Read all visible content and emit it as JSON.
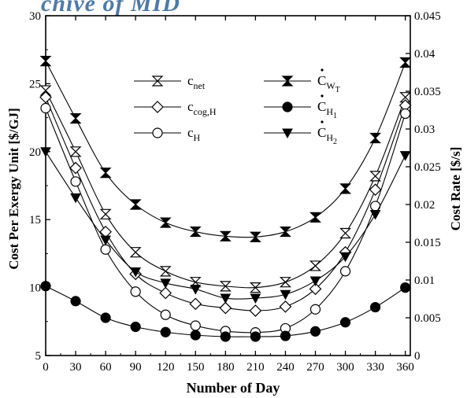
{
  "watermark": "chive of MID",
  "chart_data": {
    "type": "line",
    "xlabel": "Number of Day",
    "ylabel": "Cost Per Exergy Unit [$/GJ]",
    "ylabel_right": "Cost Rate [$/s]",
    "xlim": [
      0,
      365
    ],
    "ylim": [
      5,
      30
    ],
    "ylim_right": [
      0,
      0.045
    ],
    "xticks": [
      0,
      30,
      60,
      90,
      120,
      150,
      180,
      210,
      240,
      270,
      300,
      330,
      360
    ],
    "xtick_labels": [
      "0",
      "30",
      "60",
      "90",
      "120",
      "150",
      "180",
      "210",
      "240",
      "270",
      "300",
      "330",
      "360"
    ],
    "yticks": [
      5,
      10,
      15,
      20,
      25,
      30
    ],
    "ytick_labels": [
      "5",
      "10",
      "15",
      "20",
      "25",
      "30"
    ],
    "yticks_right": [
      0,
      0.005,
      0.01,
      0.015,
      0.02,
      0.025,
      0.03,
      0.035,
      0.04,
      0.045
    ],
    "ytick_labels_right": [
      "0",
      "0.005",
      "0.01",
      "0.015",
      "0.02",
      "0.025",
      "0.03",
      "0.035",
      "0.04",
      "0.045"
    ],
    "grid": false,
    "legend_position": "top-center",
    "x": [
      0,
      30,
      60,
      90,
      120,
      150,
      180,
      210,
      240,
      270,
      300,
      330,
      360
    ],
    "series": [
      {
        "name": "c_net",
        "legend_main": "c",
        "legend_sub": "net",
        "legend_dot": false,
        "marker": "hourglass-open",
        "axis": "left",
        "values": [
          24.5,
          20.0,
          15.4,
          12.6,
          11.2,
          10.4,
          10.1,
          10.0,
          10.4,
          11.6,
          14.0,
          18.2,
          24.0
        ]
      },
      {
        "name": "c_cog,H",
        "legend_main": "c",
        "legend_sub": "cog,H",
        "legend_dot": false,
        "marker": "diamond-open",
        "axis": "left",
        "values": [
          24.0,
          18.8,
          14.1,
          11.0,
          9.6,
          8.8,
          8.5,
          8.3,
          8.6,
          9.9,
          12.6,
          17.2,
          23.4
        ]
      },
      {
        "name": "c_H",
        "legend_main": "c",
        "legend_sub": "H",
        "legend_dot": false,
        "marker": "circle-open",
        "axis": "left",
        "values": [
          23.2,
          17.8,
          12.8,
          9.7,
          8.0,
          7.2,
          6.8,
          6.7,
          7.0,
          8.4,
          11.2,
          16.0,
          22.8
        ]
      },
      {
        "name": "Ċ_W_T",
        "legend_main": "C",
        "legend_sub": "W",
        "legend_sub2": "T",
        "legend_dot": true,
        "marker": "hourglass-filled",
        "axis": "right",
        "values": [
          0.039,
          0.0314,
          0.0242,
          0.02,
          0.0176,
          0.0164,
          0.0158,
          0.0157,
          0.0164,
          0.0183,
          0.0221,
          0.0288,
          0.0388
        ]
      },
      {
        "name": "Ċ_H_1",
        "legend_main": "C",
        "legend_sub": "H",
        "legend_sub2": "1",
        "legend_dot": true,
        "marker": "circle-filled",
        "axis": "right",
        "values": [
          0.0092,
          0.0072,
          0.005,
          0.0038,
          0.0031,
          0.0027,
          0.0025,
          0.0025,
          0.0026,
          0.0032,
          0.0044,
          0.0064,
          0.009
        ]
      },
      {
        "name": "Ċ_H_2",
        "legend_main": "C",
        "legend_sub": "H",
        "legend_sub2": "2",
        "legend_dot": true,
        "marker": "triangle-down-filled",
        "axis": "right",
        "values": [
          0.027,
          0.0209,
          0.0153,
          0.0111,
          0.0096,
          0.0088,
          0.0076,
          0.0076,
          0.0081,
          0.0099,
          0.0131,
          0.0187,
          0.0265
        ]
      }
    ]
  }
}
